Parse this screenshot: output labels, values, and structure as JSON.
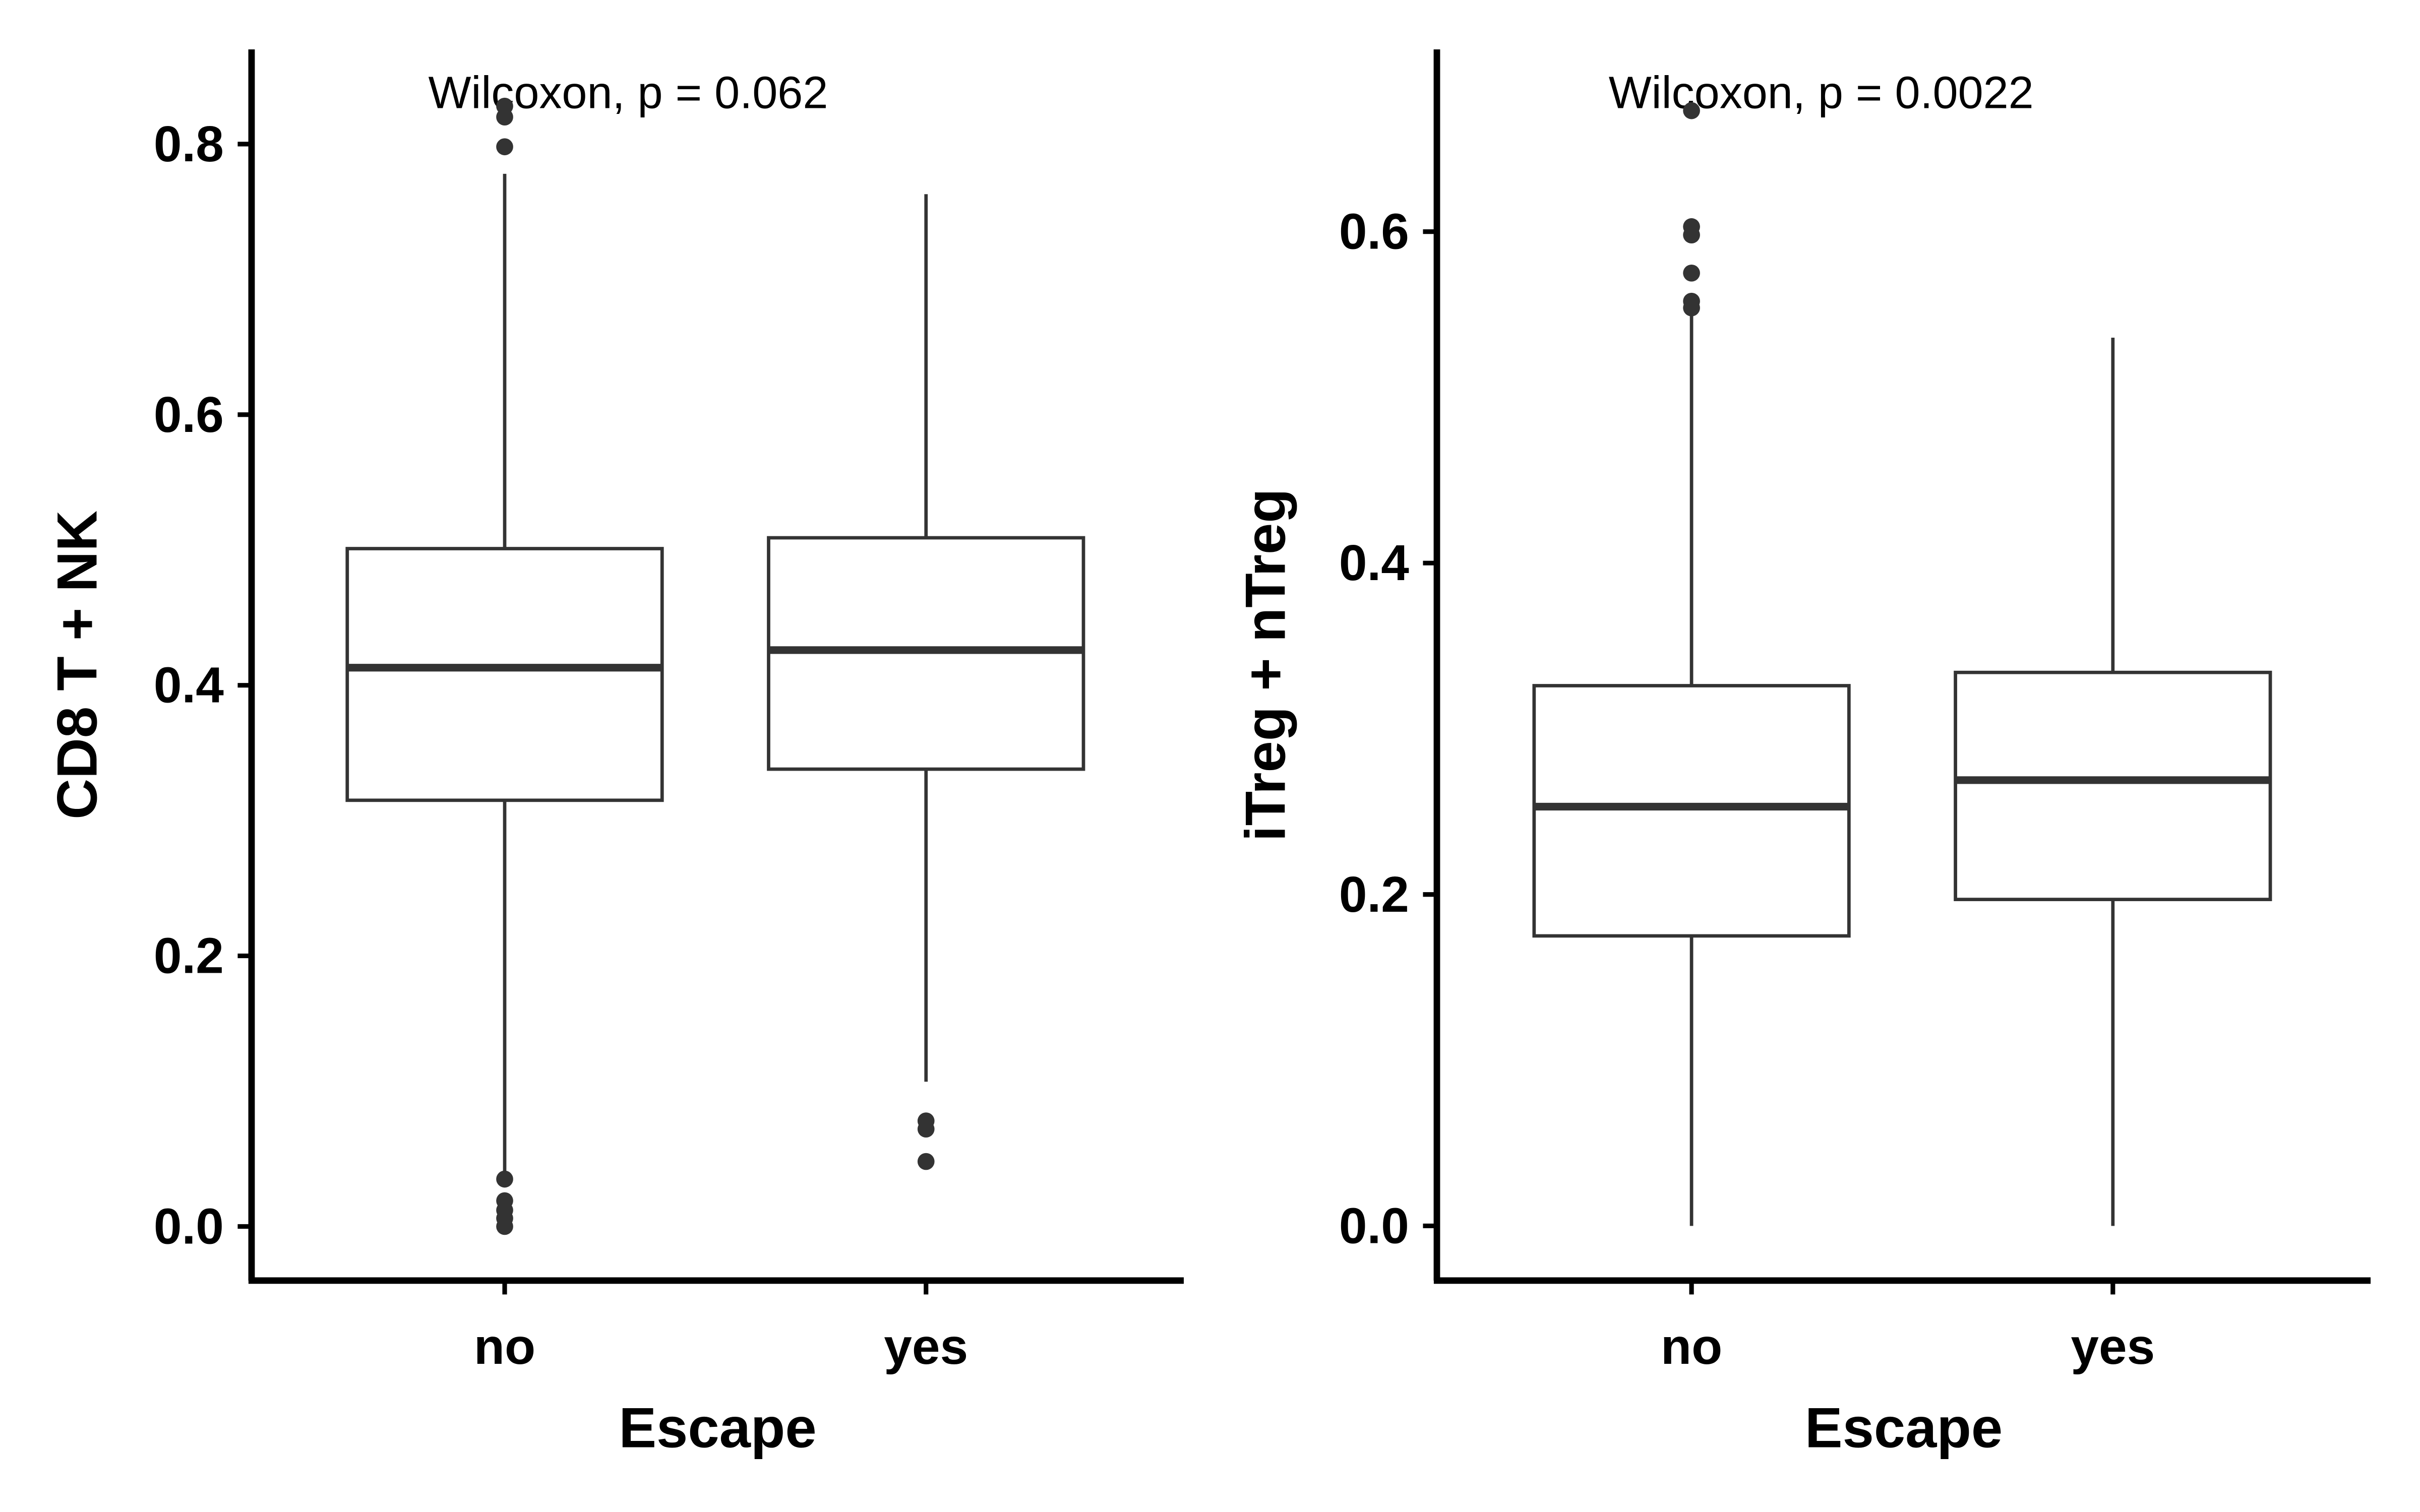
{
  "chart_data": [
    {
      "type": "boxplot",
      "annotation": "Wilcoxon, p = 0.062",
      "xlabel": "Escape",
      "ylabel": "CD8 T + NK",
      "categories": [
        "no",
        "yes"
      ],
      "yticks": [
        0.0,
        0.2,
        0.4,
        0.6,
        0.8
      ],
      "ytick_labels": [
        "0.0",
        "0.2",
        "0.4",
        "0.6",
        "0.8"
      ],
      "ylim": [
        -0.04,
        0.87
      ],
      "boxes": [
        {
          "category": "no",
          "whisker_low": 0.036,
          "q1": 0.315,
          "median": 0.413,
          "q3": 0.501,
          "whisker_high": 0.778,
          "outliers": [
            0.828,
            0.82,
            0.798,
            0.035,
            0.019,
            0.012,
            0.006,
            0.0
          ]
        },
        {
          "category": "yes",
          "whisker_low": 0.107,
          "q1": 0.338,
          "median": 0.426,
          "q3": 0.509,
          "whisker_high": 0.763,
          "outliers": [
            0.078,
            0.072,
            0.048
          ]
        }
      ],
      "grid": false
    },
    {
      "type": "boxplot",
      "annotation": "Wilcoxon, p = 0.0022",
      "xlabel": "Escape",
      "ylabel": "iTreg + nTreg",
      "categories": [
        "no",
        "yes"
      ],
      "yticks": [
        0.0,
        0.2,
        0.4,
        0.6
      ],
      "ytick_labels": [
        "0.0",
        "0.2",
        "0.4",
        "0.6"
      ],
      "ylim": [
        -0.033,
        0.71
      ],
      "boxes": [
        {
          "category": "no",
          "whisker_low": 0.0,
          "q1": 0.175,
          "median": 0.253,
          "q3": 0.326,
          "whisker_high": 0.55,
          "outliers": [
            0.673,
            0.603,
            0.598,
            0.575,
            0.558,
            0.554
          ]
        },
        {
          "category": "yes",
          "whisker_low": 0.0,
          "q1": 0.197,
          "median": 0.269,
          "q3": 0.334,
          "whisker_high": 0.536,
          "outliers": []
        }
      ],
      "grid": false
    }
  ]
}
